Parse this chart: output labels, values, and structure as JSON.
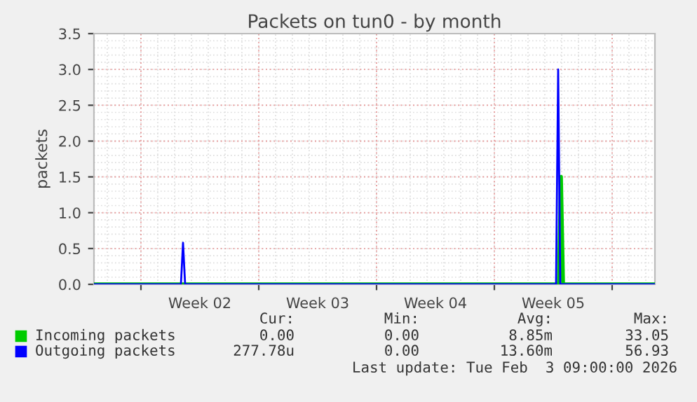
{
  "chart_data": {
    "type": "line",
    "title": "Packets on tun0 - by month",
    "ylabel": "packets",
    "xlim": [
      "2026-01-02T05:00",
      "2026-02-04T13:00"
    ],
    "xticks": [
      {
        "value": "2026-01-05",
        "label": null
      },
      {
        "value": "2026-01-08T12:00",
        "label": "Week 02"
      },
      {
        "value": "2026-01-12",
        "label": null
      },
      {
        "value": "2026-01-15T12:00",
        "label": "Week 03"
      },
      {
        "value": "2026-01-19",
        "label": null
      },
      {
        "value": "2026-01-22T12:00",
        "label": "Week 04"
      },
      {
        "value": "2026-01-26",
        "label": null
      },
      {
        "value": "2026-01-29T12:00",
        "label": "Week 05"
      },
      {
        "value": "2026-02-02",
        "label": null
      }
    ],
    "ylim": [
      0,
      3.5
    ],
    "yticks": [
      {
        "value": 0,
        "label": "0.0"
      },
      0.5,
      {
        "value": 1,
        "label": "1.0"
      },
      1.5,
      {
        "value": 2,
        "label": "2.0"
      },
      2.5,
      {
        "value": 3,
        "label": "3.0"
      },
      3.5
    ],
    "grid": true,
    "legend": "bottom",
    "marker": "none",
    "line_style": "solid",
    "series": [
      {
        "name": "Incoming packets",
        "color": "#00cc00",
        "x": [
          "2026-01-02T05:00",
          "2026-01-29T20:00",
          "2026-01-29T23:00",
          "2026-01-30T02:00",
          "2026-02-04T13:00"
        ],
        "values": [
          0,
          0,
          1.5,
          0,
          0
        ]
      },
      {
        "name": "Outgoing packets",
        "color": "#0000ff",
        "x": [
          "2026-01-02T05:00",
          "2026-01-07T09:00",
          "2026-01-07T12:00",
          "2026-01-07T15:00",
          "2026-01-29T16:00",
          "2026-01-29T19:00",
          "2026-01-29T22:00",
          "2026-02-04T13:00"
        ],
        "values": [
          0,
          0,
          0.58,
          0,
          0,
          3.0,
          0,
          0
        ]
      }
    ],
    "annotations": [
      "Cur:",
      "Min:",
      "Avg:",
      "Max:",
      "0.00",
      "0.00",
      "8.85m",
      "33.05",
      "277.78u",
      "0.00",
      "13.60m",
      "56.93",
      "Last update: Tue Feb  3 09:00:00 2026"
    ]
  }
}
